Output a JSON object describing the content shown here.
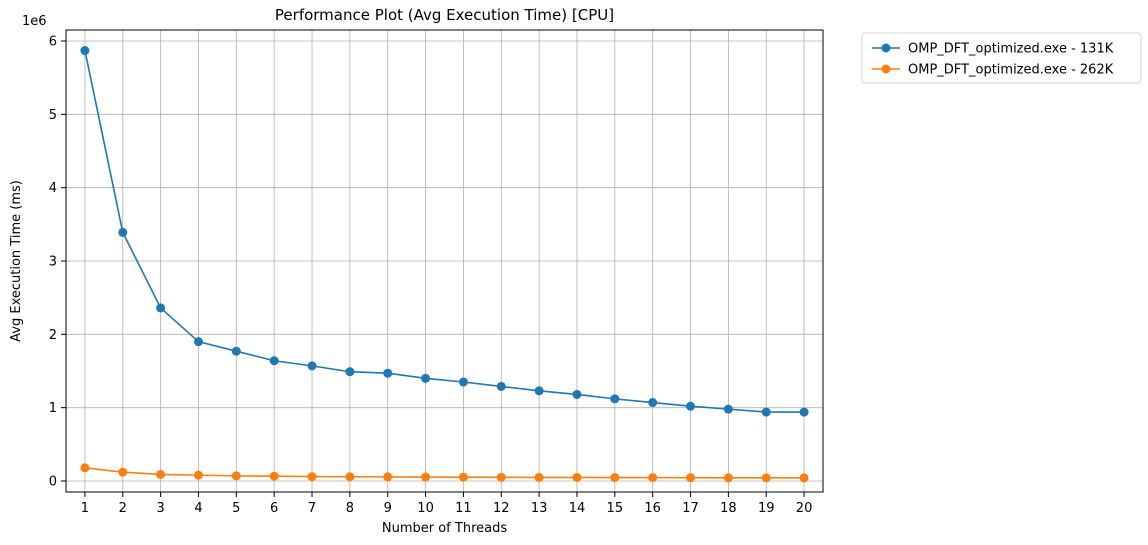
{
  "chart_data": {
    "type": "line",
    "title": "Performance Plot (Avg Execution Time) [CPU]",
    "xlabel": "Number of Threads",
    "ylabel": "Avg Execution Time (ms)",
    "y_offset_label": "1e6",
    "x": [
      1,
      2,
      3,
      4,
      5,
      6,
      7,
      8,
      9,
      10,
      11,
      12,
      13,
      14,
      15,
      16,
      17,
      18,
      19,
      20
    ],
    "xlim": [
      0.5,
      20.5
    ],
    "ylim": [
      -0.15,
      6.15
    ],
    "yticks": [
      0,
      1,
      2,
      3,
      4,
      5,
      6
    ],
    "grid": true,
    "legend_position": "outside-top-right",
    "series": [
      {
        "name": "OMP_DFT_optimized.exe - 131K",
        "color": "#1f77b4",
        "values": [
          5.87,
          3.39,
          2.36,
          1.9,
          1.77,
          1.64,
          1.57,
          1.49,
          1.47,
          1.4,
          1.35,
          1.29,
          1.23,
          1.18,
          1.12,
          1.07,
          1.02,
          0.98,
          0.94,
          0.94
        ]
      },
      {
        "name": "OMP_DFT_optimized.exe - 262K",
        "color": "#ff7f0e",
        "values": [
          0.18,
          0.12,
          0.09,
          0.08,
          0.07,
          0.065,
          0.06,
          0.058,
          0.056,
          0.054,
          0.052,
          0.05,
          0.049,
          0.048,
          0.047,
          0.046,
          0.045,
          0.044,
          0.043,
          0.042
        ]
      }
    ]
  }
}
